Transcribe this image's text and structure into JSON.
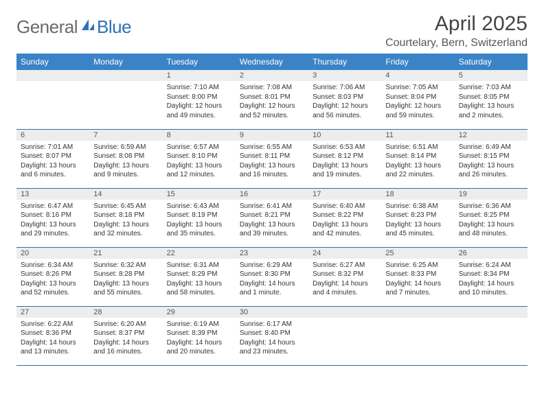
{
  "logo": {
    "text1": "General",
    "text2": "Blue"
  },
  "title": "April 2025",
  "location": "Courtelary, Bern, Switzerland",
  "colors": {
    "header_bg": "#3a83c6",
    "header_text": "#ffffff",
    "daynum_bg": "#ecedee",
    "border": "#3a6b9e",
    "logo_gray": "#6b6b6b",
    "logo_blue": "#2e72b8"
  },
  "weekdays": [
    "Sunday",
    "Monday",
    "Tuesday",
    "Wednesday",
    "Thursday",
    "Friday",
    "Saturday"
  ],
  "weeks": [
    [
      null,
      null,
      {
        "n": "1",
        "sunrise": "7:10 AM",
        "sunset": "8:00 PM",
        "daylight": "12 hours and 49 minutes."
      },
      {
        "n": "2",
        "sunrise": "7:08 AM",
        "sunset": "8:01 PM",
        "daylight": "12 hours and 52 minutes."
      },
      {
        "n": "3",
        "sunrise": "7:06 AM",
        "sunset": "8:03 PM",
        "daylight": "12 hours and 56 minutes."
      },
      {
        "n": "4",
        "sunrise": "7:05 AM",
        "sunset": "8:04 PM",
        "daylight": "12 hours and 59 minutes."
      },
      {
        "n": "5",
        "sunrise": "7:03 AM",
        "sunset": "8:05 PM",
        "daylight": "13 hours and 2 minutes."
      }
    ],
    [
      {
        "n": "6",
        "sunrise": "7:01 AM",
        "sunset": "8:07 PM",
        "daylight": "13 hours and 6 minutes."
      },
      {
        "n": "7",
        "sunrise": "6:59 AM",
        "sunset": "8:08 PM",
        "daylight": "13 hours and 9 minutes."
      },
      {
        "n": "8",
        "sunrise": "6:57 AM",
        "sunset": "8:10 PM",
        "daylight": "13 hours and 12 minutes."
      },
      {
        "n": "9",
        "sunrise": "6:55 AM",
        "sunset": "8:11 PM",
        "daylight": "13 hours and 16 minutes."
      },
      {
        "n": "10",
        "sunrise": "6:53 AM",
        "sunset": "8:12 PM",
        "daylight": "13 hours and 19 minutes."
      },
      {
        "n": "11",
        "sunrise": "6:51 AM",
        "sunset": "8:14 PM",
        "daylight": "13 hours and 22 minutes."
      },
      {
        "n": "12",
        "sunrise": "6:49 AM",
        "sunset": "8:15 PM",
        "daylight": "13 hours and 26 minutes."
      }
    ],
    [
      {
        "n": "13",
        "sunrise": "6:47 AM",
        "sunset": "8:16 PM",
        "daylight": "13 hours and 29 minutes."
      },
      {
        "n": "14",
        "sunrise": "6:45 AM",
        "sunset": "8:18 PM",
        "daylight": "13 hours and 32 minutes."
      },
      {
        "n": "15",
        "sunrise": "6:43 AM",
        "sunset": "8:19 PM",
        "daylight": "13 hours and 35 minutes."
      },
      {
        "n": "16",
        "sunrise": "6:41 AM",
        "sunset": "8:21 PM",
        "daylight": "13 hours and 39 minutes."
      },
      {
        "n": "17",
        "sunrise": "6:40 AM",
        "sunset": "8:22 PM",
        "daylight": "13 hours and 42 minutes."
      },
      {
        "n": "18",
        "sunrise": "6:38 AM",
        "sunset": "8:23 PM",
        "daylight": "13 hours and 45 minutes."
      },
      {
        "n": "19",
        "sunrise": "6:36 AM",
        "sunset": "8:25 PM",
        "daylight": "13 hours and 48 minutes."
      }
    ],
    [
      {
        "n": "20",
        "sunrise": "6:34 AM",
        "sunset": "8:26 PM",
        "daylight": "13 hours and 52 minutes."
      },
      {
        "n": "21",
        "sunrise": "6:32 AM",
        "sunset": "8:28 PM",
        "daylight": "13 hours and 55 minutes."
      },
      {
        "n": "22",
        "sunrise": "6:31 AM",
        "sunset": "8:29 PM",
        "daylight": "13 hours and 58 minutes."
      },
      {
        "n": "23",
        "sunrise": "6:29 AM",
        "sunset": "8:30 PM",
        "daylight": "14 hours and 1 minute."
      },
      {
        "n": "24",
        "sunrise": "6:27 AM",
        "sunset": "8:32 PM",
        "daylight": "14 hours and 4 minutes."
      },
      {
        "n": "25",
        "sunrise": "6:25 AM",
        "sunset": "8:33 PM",
        "daylight": "14 hours and 7 minutes."
      },
      {
        "n": "26",
        "sunrise": "6:24 AM",
        "sunset": "8:34 PM",
        "daylight": "14 hours and 10 minutes."
      }
    ],
    [
      {
        "n": "27",
        "sunrise": "6:22 AM",
        "sunset": "8:36 PM",
        "daylight": "14 hours and 13 minutes."
      },
      {
        "n": "28",
        "sunrise": "6:20 AM",
        "sunset": "8:37 PM",
        "daylight": "14 hours and 16 minutes."
      },
      {
        "n": "29",
        "sunrise": "6:19 AM",
        "sunset": "8:39 PM",
        "daylight": "14 hours and 20 minutes."
      },
      {
        "n": "30",
        "sunrise": "6:17 AM",
        "sunset": "8:40 PM",
        "daylight": "14 hours and 23 minutes."
      },
      null,
      null,
      null
    ]
  ],
  "labels": {
    "sunrise": "Sunrise:",
    "sunset": "Sunset:",
    "daylight": "Daylight:"
  }
}
